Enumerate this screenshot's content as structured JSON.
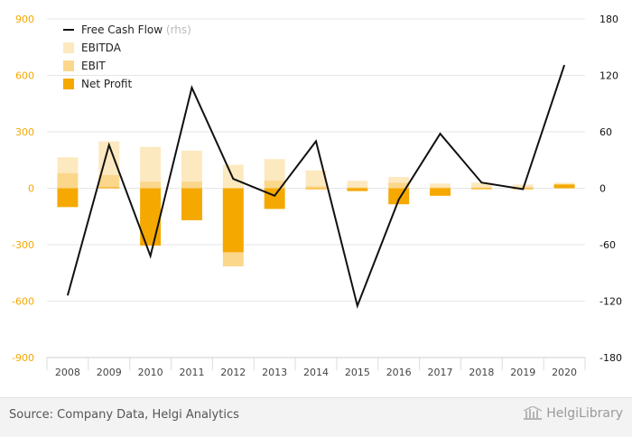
{
  "chart_data": {
    "type": "bar",
    "categories": [
      "2008",
      "2009",
      "2010",
      "2011",
      "2012",
      "2013",
      "2014",
      "2015",
      "2016",
      "2017",
      "2018",
      "2019",
      "2020"
    ],
    "series": [
      {
        "name": "EBITDA",
        "kind": "bar",
        "axis": "left",
        "color": "#fde9c0",
        "values": [
          165,
          250,
          220,
          200,
          125,
          155,
          95,
          40,
          60,
          25,
          30,
          20,
          30
        ]
      },
      {
        "name": "EBIT",
        "kind": "bar",
        "axis": "left",
        "color": "#fbd78c",
        "values": [
          80,
          70,
          35,
          35,
          -415,
          40,
          10,
          5,
          30,
          5,
          5,
          5,
          20
        ]
      },
      {
        "name": "Net Profit",
        "kind": "bar",
        "axis": "left",
        "color": "#f5a800",
        "values": [
          -100,
          5,
          -305,
          -170,
          -340,
          -110,
          -5,
          -15,
          -85,
          -40,
          -5,
          -5,
          20
        ]
      },
      {
        "name": "Free Cash Flow",
        "name_suffix": "(rhs)",
        "kind": "line",
        "axis": "right",
        "color": "#111111",
        "values": [
          -114,
          46,
          -72,
          107,
          10,
          -8,
          50,
          -125,
          -12,
          58,
          6,
          -1,
          131
        ]
      }
    ],
    "y_left": {
      "ylim": [
        -900,
        900
      ],
      "ticks": [
        "900",
        "600",
        "300",
        "0",
        "-300",
        "-600",
        "-900"
      ],
      "tick_values": [
        900,
        600,
        300,
        0,
        -300,
        -600,
        -900
      ],
      "color": "#f5a800"
    },
    "y_right": {
      "ylim": [
        -180,
        180
      ],
      "ticks": [
        "180",
        "120",
        "60",
        "0",
        "-60",
        "-120",
        "-180"
      ],
      "tick_values": [
        180,
        120,
        60,
        0,
        -60,
        -120,
        -180
      ],
      "color": "#111111"
    },
    "legend_position": "top-left",
    "grid": true
  },
  "footer": {
    "source": "Source: Company Data, Helgi Analytics",
    "logo": "HelgiLibrary"
  }
}
